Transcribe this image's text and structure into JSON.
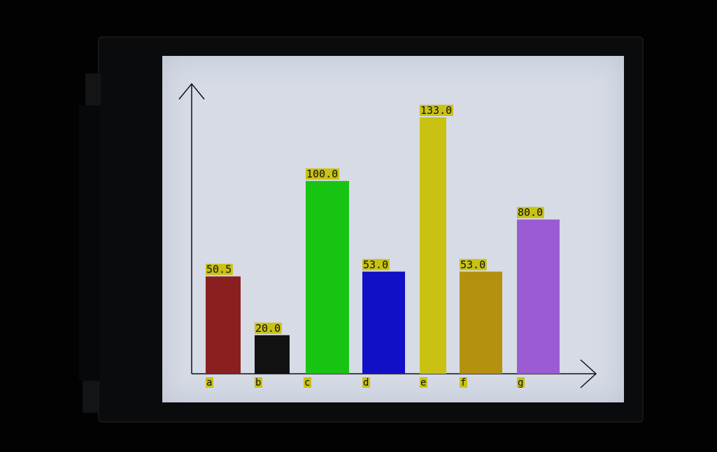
{
  "chart_data": {
    "type": "bar",
    "categories": [
      "a",
      "b",
      "c",
      "d",
      "e",
      "f",
      "g"
    ],
    "values": [
      50.5,
      20.0,
      100.0,
      53.0,
      133.0,
      53.0,
      80.0
    ],
    "value_labels": [
      "50.5",
      "20.0",
      "100.0",
      "53.0",
      "133.0",
      "53.0",
      "80.0"
    ],
    "colors": [
      "#8a1f1f",
      "#121212",
      "#17c412",
      "#1210c6",
      "#c9c213",
      "#b4900f",
      "#9a5bd3"
    ],
    "label_background": "#c9c214",
    "axis_color": "#111111",
    "title": "",
    "xlabel": "",
    "ylabel": "",
    "ylim": [
      0,
      160
    ],
    "grid": false,
    "legend": "none"
  }
}
